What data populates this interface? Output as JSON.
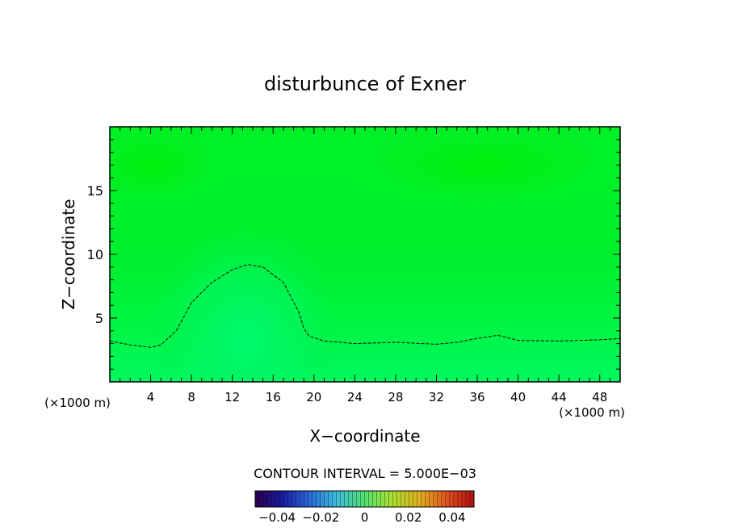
{
  "chart_data": {
    "type": "heatmap",
    "title": "disturbunce of Exner",
    "xlabel": "X−coordinate",
    "ylabel": "Z−coordinate",
    "x_unit": "(×1000 m)",
    "z_unit": "(×1000 m)",
    "xlim": [
      0,
      50
    ],
    "ylim": [
      0,
      20
    ],
    "x_ticks": [
      "4",
      "8",
      "12",
      "16",
      "20",
      "24",
      "28",
      "32",
      "36",
      "40",
      "44",
      "48"
    ],
    "y_ticks": [
      "5",
      "10",
      "15"
    ],
    "contour_interval_label": "CONTOUR INTERVAL = 5.000E−03",
    "dashed_contour": {
      "x": [
        0,
        2,
        4,
        5,
        6.5,
        8,
        10,
        12,
        13.5,
        15,
        17,
        18.5,
        19,
        19.5,
        21,
        24,
        28,
        32,
        34,
        36,
        38,
        40,
        44,
        48,
        50
      ],
      "z": [
        3.2,
        2.9,
        2.7,
        2.9,
        4.0,
        6.2,
        7.8,
        8.8,
        9.2,
        9.0,
        7.8,
        5.5,
        4.2,
        3.6,
        3.2,
        3.0,
        3.1,
        2.95,
        3.1,
        3.4,
        3.65,
        3.25,
        3.2,
        3.3,
        3.4
      ]
    },
    "colorbar": {
      "range": [
        -0.05,
        0.05
      ],
      "tick_values": [
        -0.04,
        -0.02,
        0,
        0.02,
        0.04
      ],
      "tick_labels": [
        "−0.04",
        "−0.02",
        "0",
        "0.02",
        "0.04"
      ]
    }
  }
}
